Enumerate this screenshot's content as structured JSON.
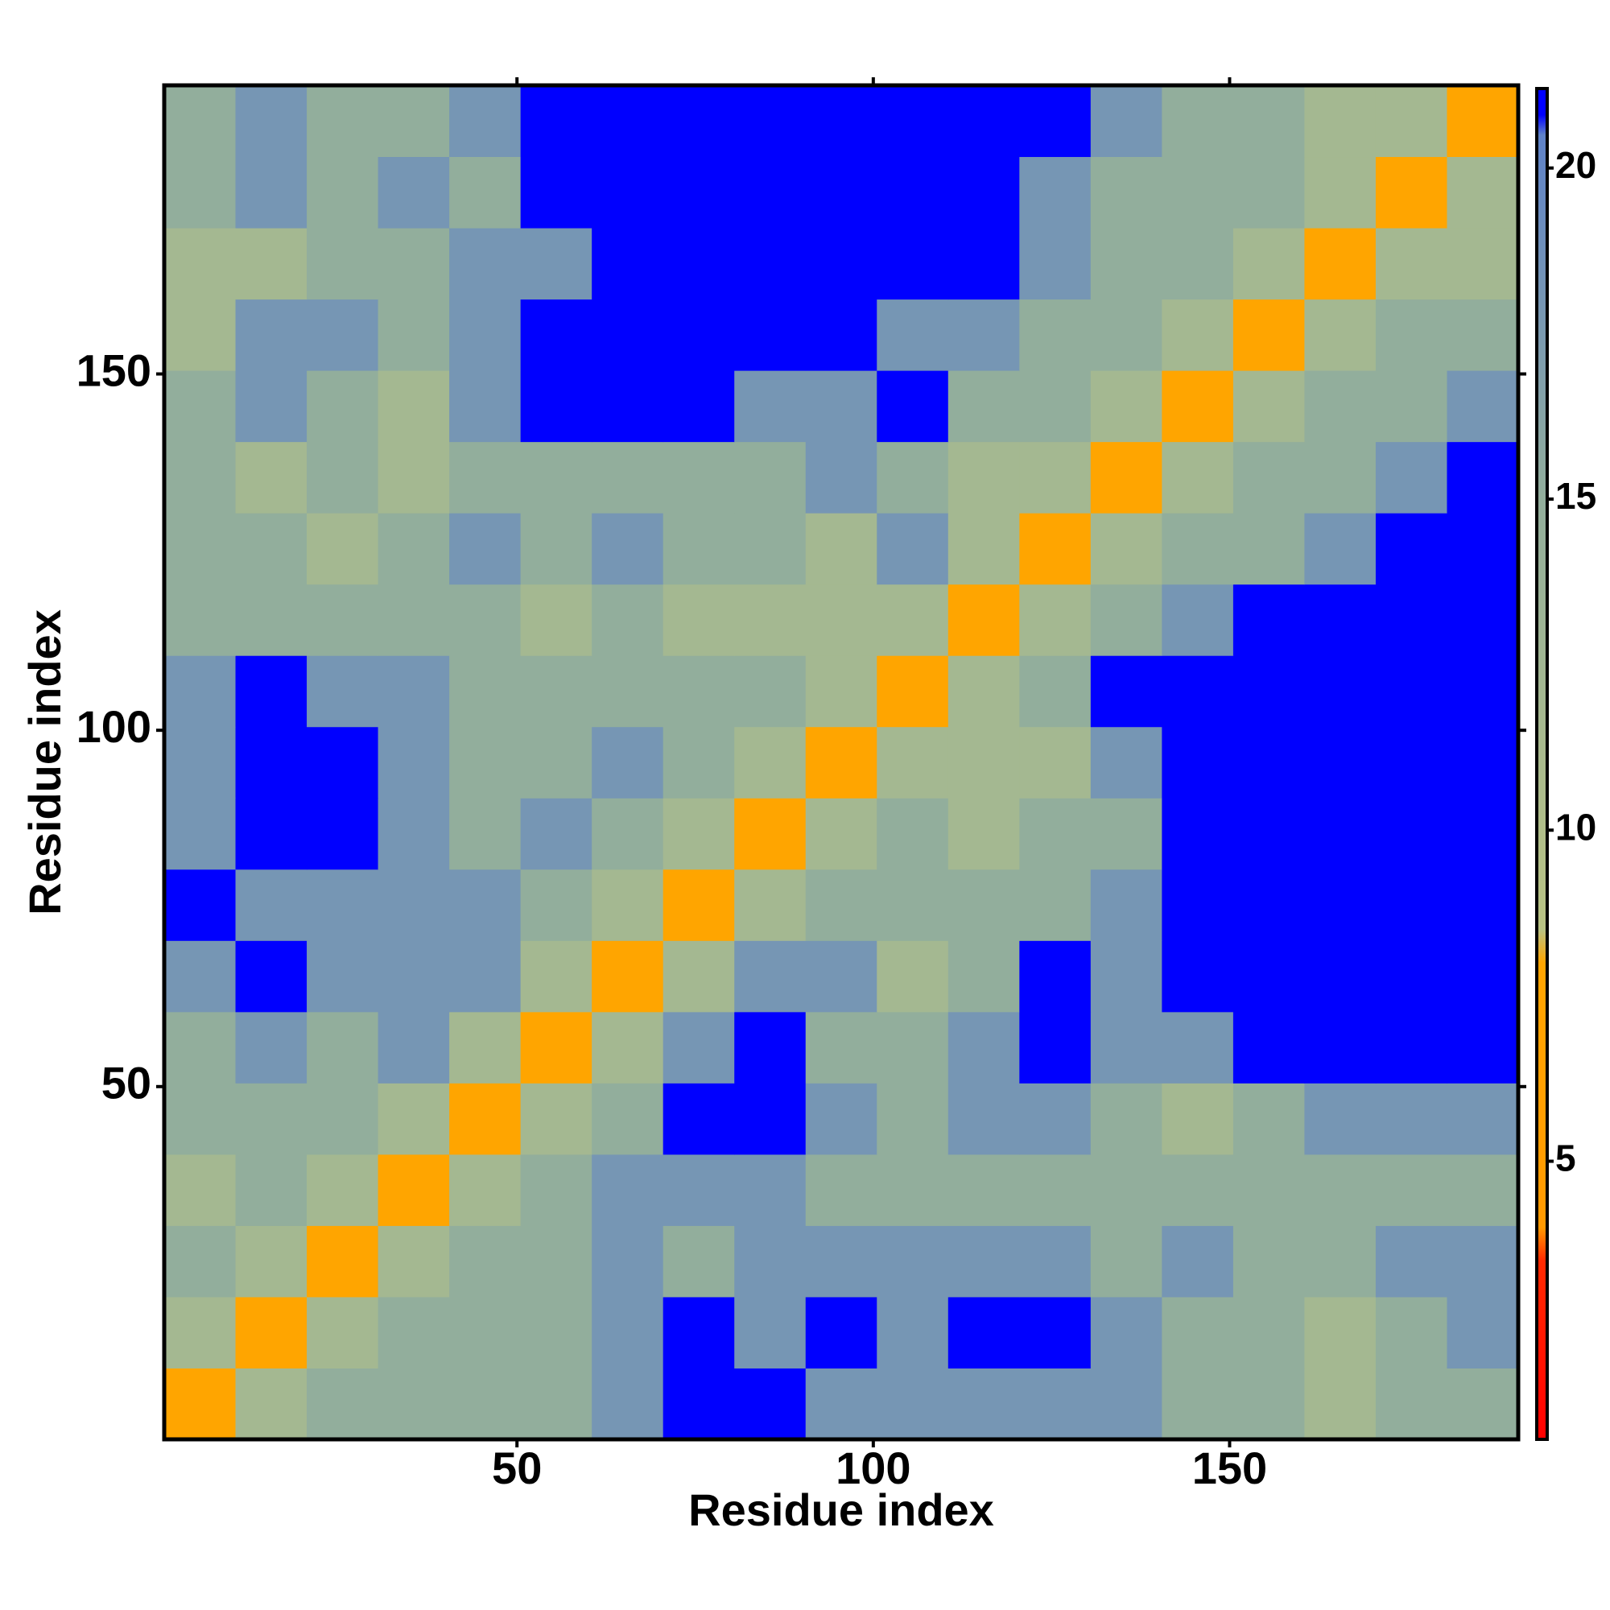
{
  "chart_data": {
    "type": "heatmap",
    "xlabel": "Residue index",
    "ylabel": "Residue index",
    "xbins": [
      0.5,
      10.5,
      20.5,
      30.5,
      40.5,
      50.5,
      60.5,
      70.5,
      80.5,
      90.5,
      100.5,
      110.5,
      120.5,
      130.5,
      140.5,
      150.5,
      160.5,
      170.5,
      180.5,
      190.5
    ],
    "ybins": [
      0.5,
      10.5,
      20.5,
      30.5,
      40.5,
      50.5,
      60.5,
      70.5,
      80.5,
      90.5,
      100.5,
      110.5,
      120.5,
      130.5,
      140.5,
      150.5,
      160.5,
      170.5,
      180.5,
      190.5
    ],
    "xlim": [
      0.5,
      190.5
    ],
    "ylim": [
      0.5,
      190.5
    ],
    "xticks": [
      50,
      100,
      150
    ],
    "yticks": [
      50,
      100,
      150
    ],
    "zlim": [
      0.8,
      21.2
    ],
    "zticks": [
      5,
      10,
      15,
      20
    ],
    "colorscale": [
      [
        0.8,
        "#ff0000"
      ],
      [
        3.5,
        "#ff2a00"
      ],
      [
        4,
        "#ff9900"
      ],
      [
        8,
        "#ffa500"
      ],
      [
        8.5,
        "#b9c384"
      ],
      [
        15,
        "#92ae9c"
      ],
      [
        20.5,
        "#5f82c8"
      ],
      [
        20.8,
        "#0000ff"
      ],
      [
        21.2,
        "#0000ff"
      ]
    ],
    "z": [
      [
        8,
        12,
        15,
        15,
        15,
        15,
        18,
        21,
        21,
        18,
        18,
        18,
        18,
        18,
        15,
        15,
        12,
        15,
        15
      ],
      [
        12,
        8,
        12,
        15,
        15,
        15,
        18,
        21,
        18,
        21,
        18,
        21,
        21,
        18,
        15,
        15,
        12,
        15,
        18
      ],
      [
        15,
        12,
        8,
        12,
        15,
        15,
        18,
        15,
        18,
        18,
        18,
        18,
        18,
        15,
        18,
        15,
        15,
        18,
        18
      ],
      [
        12,
        15,
        12,
        8,
        12,
        15,
        18,
        18,
        18,
        15,
        15,
        15,
        15,
        15,
        15,
        15,
        15,
        15,
        15
      ],
      [
        15,
        15,
        15,
        12,
        8,
        12,
        15,
        21,
        21,
        18,
        15,
        18,
        18,
        15,
        12,
        15,
        18,
        18,
        18
      ],
      [
        15,
        18,
        15,
        18,
        12,
        8,
        12,
        18,
        21,
        15,
        15,
        18,
        21,
        18,
        18,
        21,
        21,
        21,
        21
      ],
      [
        18,
        21,
        18,
        18,
        18,
        12,
        8,
        12,
        18,
        18,
        12,
        15,
        21,
        18,
        21,
        21,
        21,
        21,
        21
      ],
      [
        21,
        18,
        18,
        18,
        18,
        15,
        12,
        8,
        12,
        15,
        15,
        15,
        15,
        18,
        21,
        21,
        21,
        21,
        21
      ],
      [
        18,
        21,
        21,
        18,
        15,
        18,
        15,
        12,
        8,
        12,
        15,
        12,
        15,
        15,
        21,
        21,
        21,
        21,
        21
      ],
      [
        18,
        21,
        21,
        18,
        15,
        15,
        18,
        15,
        12,
        8,
        12,
        12,
        12,
        18,
        21,
        21,
        21,
        21,
        21
      ],
      [
        18,
        21,
        18,
        18,
        15,
        15,
        15,
        15,
        15,
        12,
        8,
        12,
        15,
        21,
        21,
        21,
        21,
        21,
        21
      ],
      [
        15,
        15,
        15,
        15,
        15,
        12,
        15,
        12,
        12,
        12,
        12,
        8,
        12,
        15,
        18,
        21,
        21,
        21,
        21
      ],
      [
        15,
        15,
        12,
        15,
        18,
        15,
        18,
        15,
        15,
        12,
        18,
        12,
        8,
        12,
        15,
        15,
        18,
        21,
        21
      ],
      [
        15,
        12,
        15,
        12,
        15,
        15,
        15,
        15,
        15,
        18,
        15,
        12,
        12,
        8,
        12,
        15,
        15,
        18,
        21
      ],
      [
        15,
        18,
        15,
        12,
        18,
        21,
        21,
        21,
        18,
        18,
        21,
        15,
        15,
        12,
        8,
        12,
        15,
        15,
        18
      ],
      [
        12,
        18,
        18,
        15,
        18,
        21,
        21,
        21,
        21,
        21,
        18,
        18,
        15,
        15,
        12,
        8,
        12,
        15,
        15
      ],
      [
        12,
        12,
        15,
        15,
        18,
        18,
        21,
        21,
        21,
        21,
        21,
        21,
        18,
        15,
        15,
        12,
        8,
        12,
        12
      ],
      [
        15,
        18,
        15,
        18,
        15,
        21,
        21,
        21,
        21,
        21,
        21,
        21,
        18,
        15,
        15,
        15,
        12,
        8,
        12
      ],
      [
        15,
        18,
        15,
        15,
        18,
        21,
        21,
        21,
        21,
        21,
        21,
        21,
        21,
        18,
        15,
        15,
        12,
        12,
        8
      ]
    ]
  }
}
